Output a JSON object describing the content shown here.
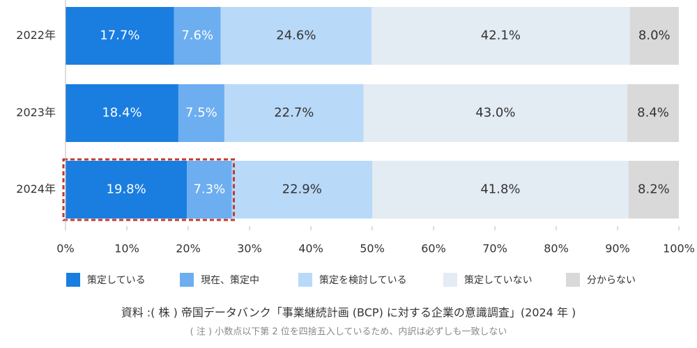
{
  "chart_data": {
    "type": "stacked_bar_horizontal",
    "categories": [
      "2022年",
      "2023年",
      "2024年"
    ],
    "series": [
      {
        "name": "策定している",
        "color": "#1a7de0",
        "values": [
          17.7,
          18.4,
          19.8
        ],
        "value_labels": [
          "17.7%",
          "18.4%",
          "19.8%"
        ]
      },
      {
        "name": "現在、策定中",
        "color": "#6caef0",
        "values": [
          7.6,
          7.5,
          7.3
        ],
        "value_labels": [
          "7.6%",
          "7.5%",
          "7.3%"
        ]
      },
      {
        "name": "策定を検討している",
        "color": "#b9d9f8",
        "values": [
          24.6,
          22.7,
          22.9
        ],
        "value_labels": [
          "24.6%",
          "22.7%",
          "22.9%"
        ]
      },
      {
        "name": "策定していない",
        "color": "#e3ebf3",
        "values": [
          42.1,
          43.0,
          41.8
        ],
        "value_labels": [
          "42.1%",
          "43.0%",
          "41.8%"
        ]
      },
      {
        "name": "分からない",
        "color": "#d9d9d9",
        "values": [
          8.0,
          8.4,
          8.2
        ],
        "value_labels": [
          "8.0%",
          "8.4%",
          "8.2%"
        ]
      }
    ],
    "xlim": [
      0,
      100
    ],
    "xticks": [
      {
        "value": 0,
        "label": "0%"
      },
      {
        "value": 10,
        "label": "10%"
      },
      {
        "value": 20,
        "label": "20%"
      },
      {
        "value": 30,
        "label": "30%"
      },
      {
        "value": 40,
        "label": "40%"
      },
      {
        "value": 50,
        "label": "50%"
      },
      {
        "value": 60,
        "label": "60%"
      },
      {
        "value": 70,
        "label": "70%"
      },
      {
        "value": 80,
        "label": "80%"
      },
      {
        "value": 90,
        "label": "90%"
      },
      {
        "value": 100,
        "label": "100%"
      }
    ],
    "legend": "bottom",
    "source": "資料 :( 株 ) 帝国データバンク「事業継続計画 (BCP) に対する企業の意識調査」(2024 年 )",
    "note": "( 注 ) 小数点以下第 2 位を四捨五入しているため、内訳は必ずしも一致しない"
  }
}
